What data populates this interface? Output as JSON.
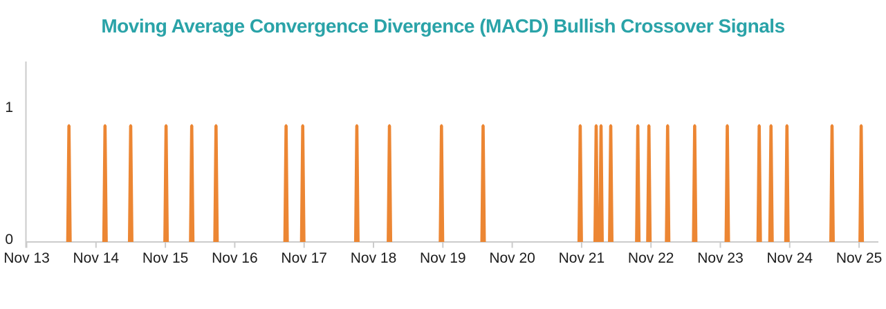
{
  "chart_data": {
    "type": "bar",
    "title": "Moving Average Convergence Divergence (MACD) Bullish Crossover Signals",
    "xlabel": "",
    "ylabel": "",
    "x_tick_labels": [
      "Nov 13",
      "Nov 14",
      "Nov 15",
      "Nov 16",
      "Nov 17",
      "Nov 18",
      "Nov 19",
      "Nov 20",
      "Nov 21",
      "Nov 22",
      "Nov 23",
      "Nov 24",
      "Nov 25"
    ],
    "y_tick_labels": [
      "0",
      "1"
    ],
    "ylim_shown": [
      0,
      1.37
    ],
    "grid": false,
    "legend": false,
    "series": [
      {
        "name": "MACD bullish crossover signal",
        "signal_value": 1,
        "rendered_peak_axis_units": 0.9,
        "signal_times_days_after_nov13": [
          0.61,
          1.13,
          1.5,
          2.01,
          2.38,
          2.73,
          3.74,
          3.98,
          4.76,
          5.23,
          5.98,
          6.58,
          7.98,
          8.21,
          8.28,
          8.42,
          8.81,
          8.97,
          9.24,
          9.63,
          10.1,
          10.56,
          10.73,
          10.96,
          11.61,
          12.03
        ]
      }
    ],
    "colors": {
      "spike": "#EC8633",
      "title": "#2AA3A8",
      "axis_line": "#CBCBCB",
      "tick_label": "#1C1C1C"
    }
  }
}
